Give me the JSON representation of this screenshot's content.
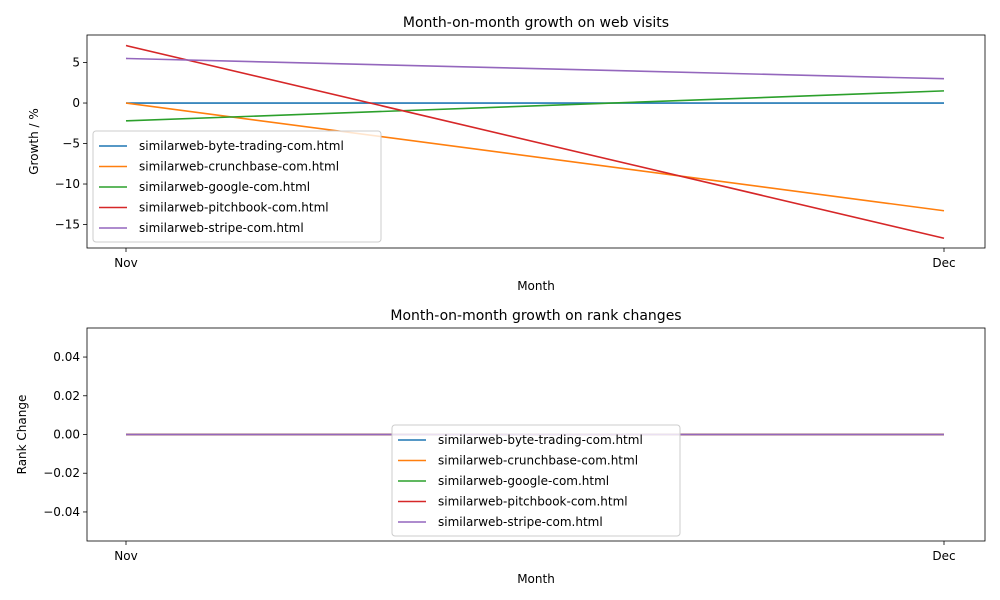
{
  "chart_data": [
    {
      "type": "line",
      "title": "Month-on-month growth on web visits",
      "xlabel": "Month",
      "ylabel": "Growth / %",
      "categories": [
        "Nov",
        "Dec"
      ],
      "ylim": [
        -17.9,
        8.4
      ],
      "yticks": [
        5,
        0,
        -5,
        -10,
        -15
      ],
      "ytick_labels": [
        "5",
        "0",
        "−5",
        "−10",
        "−15"
      ],
      "grid": false,
      "legend_location": "lower-left",
      "series": [
        {
          "name": "similarweb-byte-trading-com.html",
          "color": "#1f77b4",
          "values": [
            0,
            0
          ]
        },
        {
          "name": "similarweb-crunchbase-com.html",
          "color": "#ff7f0e",
          "values": [
            0,
            -13.3
          ]
        },
        {
          "name": "similarweb-google-com.html",
          "color": "#2ca02c",
          "values": [
            -2.2,
            1.5
          ]
        },
        {
          "name": "similarweb-pitchbook-com.html",
          "color": "#d62728",
          "values": [
            7.1,
            -16.7
          ]
        },
        {
          "name": "similarweb-stripe-com.html",
          "color": "#9467bd",
          "values": [
            5.5,
            3.0
          ]
        }
      ]
    },
    {
      "type": "line",
      "title": "Month-on-month growth on rank changes",
      "xlabel": "Month",
      "ylabel": "Rank Change",
      "categories": [
        "Nov",
        "Dec"
      ],
      "ylim": [
        -0.055,
        0.055
      ],
      "yticks": [
        0.04,
        0.02,
        0.0,
        -0.02,
        -0.04
      ],
      "ytick_labels": [
        "0.04",
        "0.02",
        "0.00",
        "−0.02",
        "−0.04"
      ],
      "grid": false,
      "legend_location": "lower-center",
      "series": [
        {
          "name": "similarweb-byte-trading-com.html",
          "color": "#1f77b4",
          "values": [
            0,
            0
          ]
        },
        {
          "name": "similarweb-crunchbase-com.html",
          "color": "#ff7f0e",
          "values": [
            0,
            0
          ]
        },
        {
          "name": "similarweb-google-com.html",
          "color": "#2ca02c",
          "values": [
            0,
            0
          ]
        },
        {
          "name": "similarweb-pitchbook-com.html",
          "color": "#d62728",
          "values": [
            0,
            0
          ]
        },
        {
          "name": "similarweb-stripe-com.html",
          "color": "#9467bd",
          "values": [
            0,
            0
          ]
        }
      ]
    }
  ]
}
